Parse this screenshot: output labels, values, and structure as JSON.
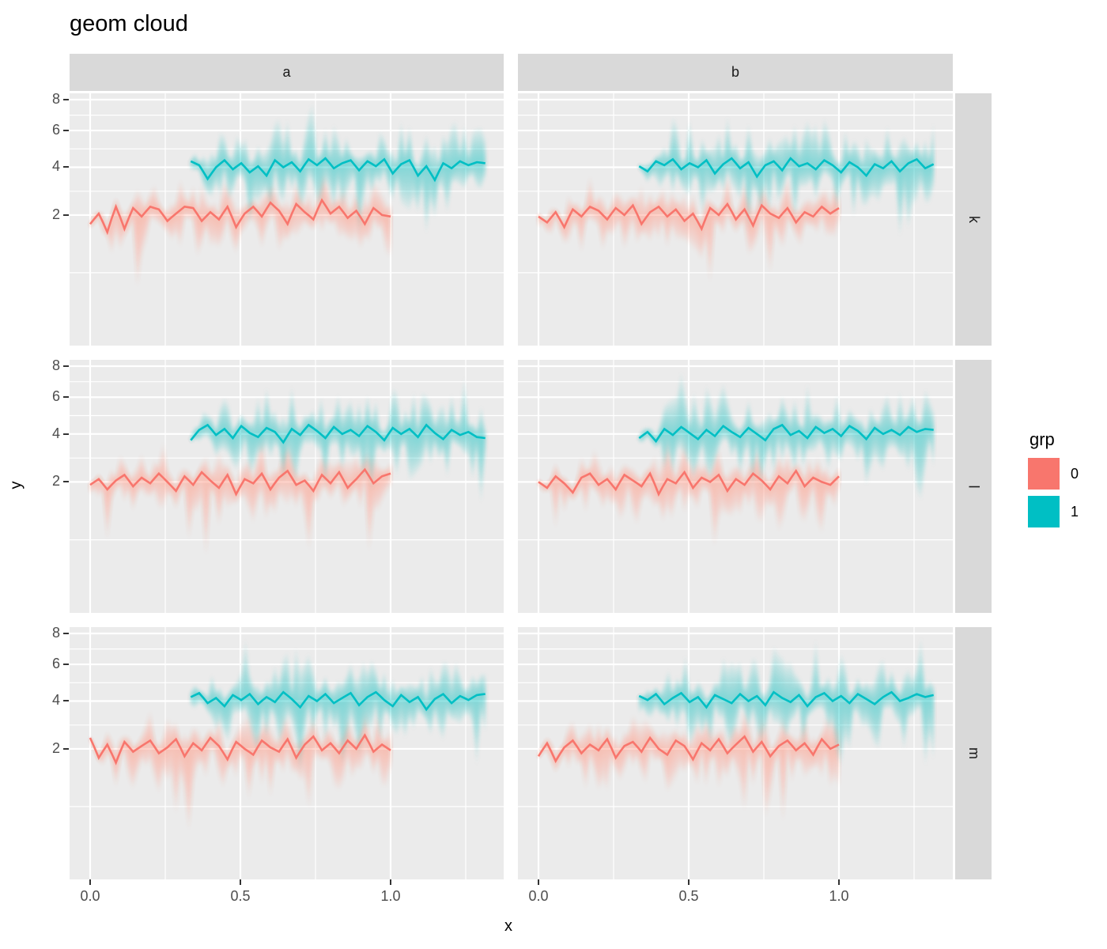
{
  "title": "geom cloud",
  "facets": {
    "cols": [
      "a",
      "b"
    ],
    "rows": [
      "k",
      "l",
      "m"
    ]
  },
  "axis": {
    "x_label": "x",
    "y_label": "y",
    "x_ticks": [
      "0.0",
      "0.5",
      "1.0"
    ],
    "x_tick_values": [
      0,
      0.5,
      1.0
    ],
    "y_ticks": [
      "8",
      "6",
      "4",
      "2"
    ],
    "y_tick_values": [
      8,
      6,
      4,
      2
    ]
  },
  "legend": {
    "title": "grp",
    "items": [
      {
        "label": "0",
        "color": "#F8766D"
      },
      {
        "label": "1",
        "color": "#00BFC4"
      }
    ]
  },
  "colors": {
    "grp0": "#F8766D",
    "grp1": "#00BFC4",
    "panel_bg": "#EBEBEB",
    "strip_bg": "#D9D9D9",
    "grid": "#FFFFFF",
    "tick_text": "#4D4D4D",
    "text": "#000000"
  },
  "chart_data": {
    "type": "area",
    "description": "gradient interval cloud around jagged mean lines, faceted grid a/b by k/l/m",
    "x_scale": {
      "breaks": [
        0,
        0.5,
        1.0
      ],
      "minor_breaks": [
        0.25,
        0.75,
        1.25
      ],
      "range": [
        -0.07,
        1.38
      ]
    },
    "y_scale": {
      "transform": "sqrt",
      "breaks": [
        2,
        4,
        6,
        8
      ],
      "minor_breaks": [
        0.5,
        2.91,
        4.95,
        6.96
      ],
      "range": [
        0,
        9
      ]
    },
    "panels": [
      {
        "facet_col": "a",
        "facet_row": "k",
        "series": [
          {
            "grp": "0",
            "color": "#F8766D",
            "x_start": 0.0,
            "x_end": 1.0,
            "y": [
              1.7,
              2.05,
              1.45,
              2.3,
              1.55,
              2.25,
              1.95,
              2.3,
              2.2,
              1.8,
              2.05,
              2.3,
              2.25,
              1.8,
              2.1,
              1.85,
              2.3,
              1.6,
              2.05,
              2.3,
              1.95,
              2.45,
              2.15,
              1.7,
              2.4,
              2.1,
              1.85,
              2.55,
              2.05,
              2.3,
              1.9,
              2.15,
              1.7,
              2.25,
              2.0,
              1.95
            ]
          },
          {
            "grp": "1",
            "color": "#00BFC4",
            "x_start": 0.335,
            "x_end": 1.315,
            "y": [
              4.3,
              4.1,
              3.45,
              4.0,
              4.35,
              3.9,
              4.2,
              3.75,
              4.05,
              3.6,
              4.35,
              4.0,
              4.25,
              3.8,
              4.4,
              4.1,
              4.45,
              3.95,
              4.2,
              4.35,
              3.85,
              4.3,
              4.05,
              4.4,
              3.7,
              4.15,
              4.35,
              3.6,
              4.05,
              3.4,
              4.2,
              3.95,
              4.3,
              4.1,
              4.25,
              4.2
            ]
          }
        ]
      },
      {
        "facet_col": "b",
        "facet_row": "k",
        "series": [
          {
            "grp": "0",
            "color": "#F8766D",
            "x_start": 0.0,
            "x_end": 1.0,
            "y": [
              1.95,
              1.75,
              2.1,
              1.6,
              2.2,
              1.95,
              2.3,
              2.15,
              1.85,
              2.25,
              2.0,
              2.35,
              1.7,
              2.1,
              2.3,
              1.95,
              2.2,
              1.8,
              2.05,
              1.55,
              2.25,
              2.0,
              2.4,
              1.85,
              2.2,
              1.65,
              2.35,
              2.05,
              1.9,
              2.25,
              1.75,
              2.1,
              1.95,
              2.3,
              2.05,
              2.25
            ]
          },
          {
            "grp": "1",
            "color": "#00BFC4",
            "x_start": 0.335,
            "x_end": 1.315,
            "y": [
              4.05,
              3.8,
              4.3,
              4.1,
              4.4,
              3.9,
              4.2,
              4.0,
              4.35,
              3.7,
              4.15,
              4.45,
              3.95,
              4.25,
              3.55,
              4.1,
              4.3,
              3.85,
              4.45,
              4.05,
              4.2,
              3.9,
              4.35,
              4.1,
              3.75,
              4.25,
              4.0,
              3.6,
              4.15,
              3.95,
              4.3,
              3.8,
              4.2,
              4.4,
              3.95,
              4.15
            ]
          }
        ]
      },
      {
        "facet_col": "a",
        "facet_row": "l",
        "series": [
          {
            "grp": "0",
            "color": "#F8766D",
            "x_start": 0.0,
            "x_end": 1.0,
            "y": [
              1.9,
              2.1,
              1.75,
              2.05,
              2.25,
              1.85,
              2.15,
              1.95,
              2.3,
              2.0,
              1.7,
              2.2,
              1.9,
              2.35,
              2.05,
              1.8,
              2.25,
              1.6,
              2.1,
              1.95,
              2.3,
              1.75,
              2.15,
              2.4,
              1.9,
              2.05,
              1.7,
              2.25,
              1.95,
              2.35,
              1.8,
              2.1,
              2.45,
              1.95,
              2.2,
              2.3
            ]
          },
          {
            "grp": "1",
            "color": "#00BFC4",
            "x_start": 0.335,
            "x_end": 1.315,
            "y": [
              3.7,
              4.2,
              4.45,
              3.95,
              4.25,
              3.8,
              4.4,
              4.05,
              3.85,
              4.3,
              4.1,
              3.6,
              4.25,
              3.95,
              4.45,
              4.15,
              3.8,
              4.35,
              4.0,
              4.2,
              3.9,
              4.4,
              4.1,
              3.7,
              4.3,
              4.0,
              4.25,
              3.85,
              4.45,
              4.05,
              3.75,
              4.2,
              3.95,
              4.1,
              3.85,
              3.8
            ]
          }
        ]
      },
      {
        "facet_col": "b",
        "facet_row": "l",
        "series": [
          {
            "grp": "0",
            "color": "#F8766D",
            "x_start": 0.0,
            "x_end": 1.0,
            "y": [
              2.0,
              1.8,
              2.2,
              1.95,
              1.65,
              2.15,
              2.3,
              1.9,
              2.1,
              1.75,
              2.25,
              2.05,
              1.85,
              2.3,
              1.6,
              2.1,
              1.95,
              2.35,
              1.8,
              2.15,
              2.0,
              2.25,
              1.7,
              2.1,
              1.9,
              2.3,
              2.05,
              1.75,
              2.2,
              1.95,
              2.4,
              1.85,
              2.15,
              2.0,
              1.9,
              2.2
            ]
          },
          {
            "grp": "1",
            "color": "#00BFC4",
            "x_start": 0.335,
            "x_end": 1.315,
            "y": [
              3.8,
              4.1,
              3.65,
              4.25,
              3.95,
              4.35,
              4.05,
              3.75,
              4.2,
              3.9,
              4.4,
              4.1,
              3.85,
              4.3,
              4.0,
              3.7,
              4.25,
              4.45,
              3.95,
              4.15,
              3.8,
              4.35,
              4.05,
              4.25,
              3.9,
              4.4,
              4.15,
              3.75,
              4.3,
              4.0,
              4.2,
              3.95,
              4.35,
              4.1,
              4.25,
              4.2
            ]
          }
        ]
      },
      {
        "facet_col": "a",
        "facet_row": "m",
        "series": [
          {
            "grp": "0",
            "color": "#F8766D",
            "x_start": 0.0,
            "x_end": 1.0,
            "y": [
              2.4,
              1.7,
              2.15,
              1.55,
              2.25,
              1.9,
              2.1,
              2.3,
              1.85,
              2.05,
              2.35,
              1.75,
              2.2,
              1.95,
              2.4,
              2.1,
              1.65,
              2.25,
              2.0,
              1.8,
              2.3,
              2.05,
              1.9,
              2.35,
              1.7,
              2.15,
              2.45,
              1.95,
              2.2,
              1.85,
              2.3,
              2.0,
              2.5,
              1.9,
              2.15,
              1.95
            ]
          },
          {
            "grp": "1",
            "color": "#00BFC4",
            "x_start": 0.335,
            "x_end": 1.315,
            "y": [
              4.2,
              4.4,
              3.9,
              4.15,
              3.75,
              4.3,
              4.05,
              4.35,
              3.85,
              4.2,
              3.95,
              4.45,
              4.1,
              3.7,
              4.25,
              4.0,
              4.35,
              3.9,
              4.15,
              4.4,
              3.8,
              4.2,
              4.45,
              4.05,
              3.75,
              4.3,
              3.95,
              4.2,
              3.6,
              4.1,
              4.35,
              3.9,
              4.25,
              4.05,
              4.3,
              4.35
            ]
          }
        ]
      },
      {
        "facet_col": "b",
        "facet_row": "m",
        "series": [
          {
            "grp": "0",
            "color": "#F8766D",
            "x_start": 0.0,
            "x_end": 1.0,
            "y": [
              1.75,
              2.2,
              1.6,
              2.05,
              2.3,
              1.85,
              2.15,
              1.95,
              2.35,
              1.7,
              2.1,
              2.25,
              1.9,
              2.4,
              2.0,
              1.8,
              2.3,
              2.1,
              1.65,
              2.2,
              1.95,
              2.35,
              1.85,
              2.15,
              2.45,
              1.9,
              2.25,
              1.75,
              2.1,
              2.3,
              1.95,
              2.2,
              1.8,
              2.35,
              2.0,
              2.15
            ]
          },
          {
            "grp": "1",
            "color": "#00BFC4",
            "x_start": 0.335,
            "x_end": 1.315,
            "y": [
              4.25,
              4.05,
              4.35,
              3.85,
              4.15,
              4.4,
              3.95,
              4.2,
              3.7,
              4.3,
              4.1,
              3.9,
              4.35,
              4.0,
              4.25,
              3.8,
              4.45,
              4.15,
              3.95,
              4.3,
              3.75,
              4.2,
              4.4,
              4.0,
              4.25,
              3.9,
              4.35,
              4.1,
              3.85,
              4.2,
              4.45,
              4.0,
              4.15,
              4.35,
              4.2,
              4.3
            ]
          }
        ]
      }
    ]
  }
}
